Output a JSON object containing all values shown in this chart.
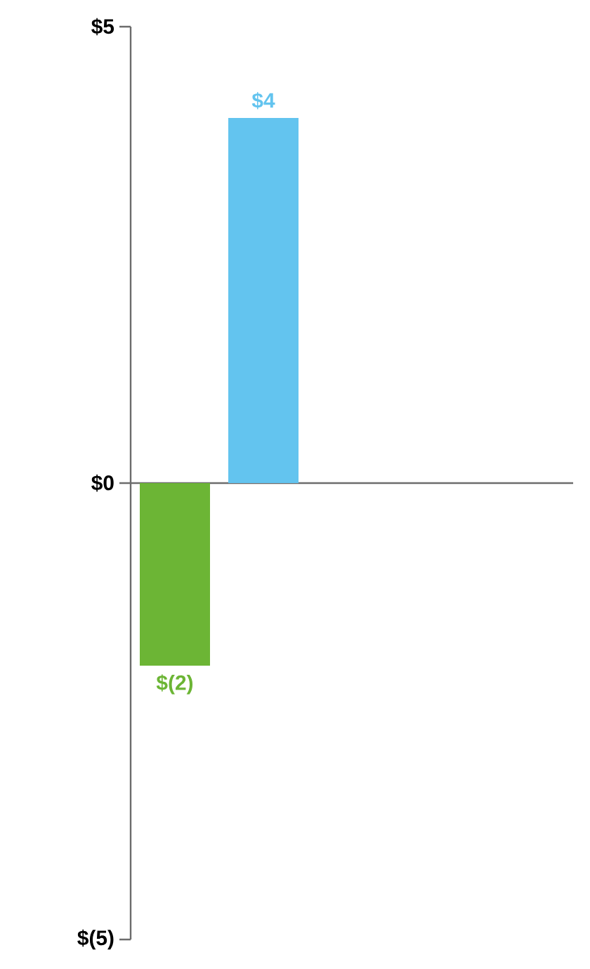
{
  "chart_data": {
    "type": "bar",
    "categories": [
      null,
      null,
      null,
      null,
      null
    ],
    "values": [
      -2,
      4,
      null,
      null,
      null
    ],
    "colors": [
      "#6cb535",
      "#63c4ef",
      "#6cb535",
      "#6cb535",
      "#6cb535"
    ],
    "value_labels": [
      "$(2)",
      "$4",
      null,
      null,
      null
    ],
    "ylim": [
      -5,
      5
    ],
    "yticks": [
      {
        "value": -5,
        "label": "$(5)"
      },
      {
        "value": 0,
        "label": "$0"
      },
      {
        "value": 5,
        "label": "$5"
      }
    ]
  }
}
